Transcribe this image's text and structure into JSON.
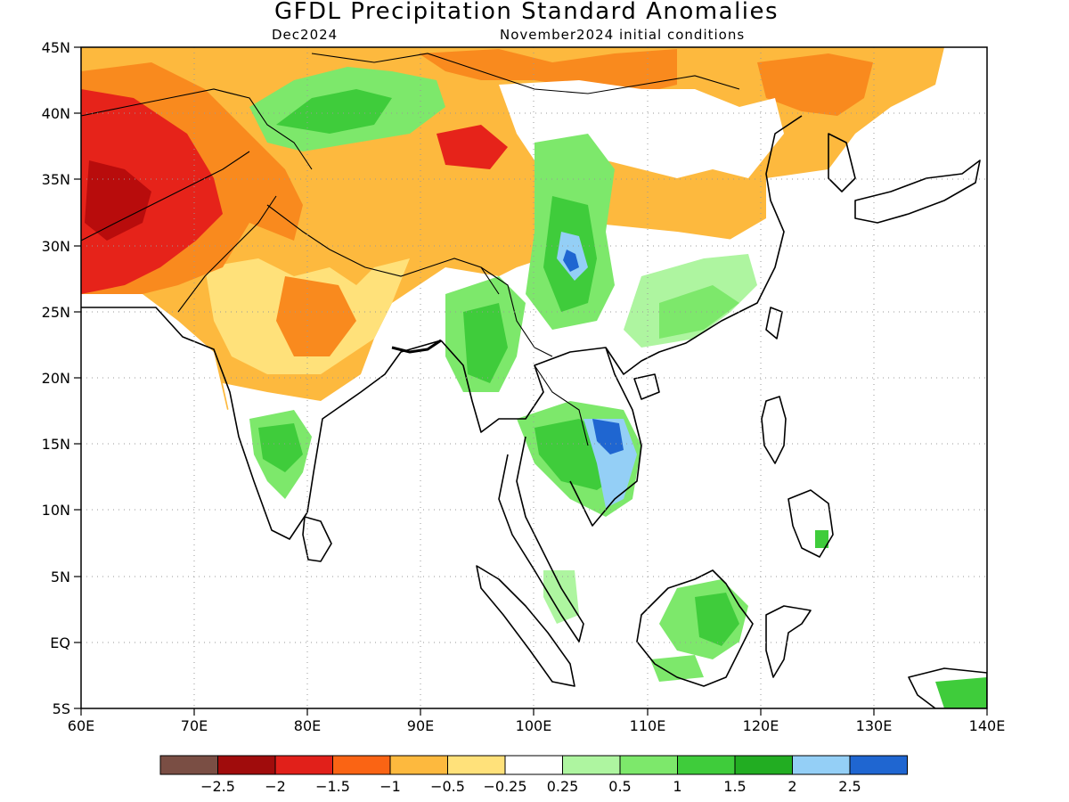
{
  "map": {
    "title": "GFDL Precipitation Standard Anomalies",
    "subtitle_left": "Dec2024",
    "subtitle_right": "November2024 initial conditions",
    "lon_range": [
      60,
      140
    ],
    "lat_range": [
      -5,
      45
    ],
    "lon_ticks": [
      "60E",
      "70E",
      "80E",
      "90E",
      "100E",
      "110E",
      "120E",
      "130E",
      "140E"
    ],
    "lat_ticks": [
      "45N",
      "40N",
      "35N",
      "30N",
      "25N",
      "20N",
      "15N",
      "10N",
      "5N",
      "EQ",
      "5S"
    ],
    "gridlines": "dotted",
    "colors": {
      "white": "#ffffff",
      "neg025": "#ffe17a",
      "neg05": "#fdb93e",
      "neg1": "#f98a1e",
      "neg15": "#e6231a",
      "neg2": "#b80c0c",
      "neg25": "#7a4e44",
      "pos025": "#aef5a0",
      "pos05": "#7de86b",
      "pos1": "#3fcc3b",
      "pos15": "#22ad22",
      "pos2": "#94cff6",
      "pos25": "#1f66d1"
    }
  },
  "colorbar": {
    "colors": [
      "#7a4e44",
      "#a00c0c",
      "#e1201a",
      "#fa6414",
      "#fdb93e",
      "#ffe17a",
      "#ffffff",
      "#aef5a0",
      "#7de86b",
      "#3fcc3b",
      "#22ad22",
      "#94cff6",
      "#1f66d1"
    ],
    "labels": [
      "−2.5",
      "−2",
      "−1.5",
      "−1",
      "−0.5",
      "−0.25",
      "0.25",
      "0.5",
      "1",
      "1.5",
      "2",
      "2.5"
    ]
  }
}
